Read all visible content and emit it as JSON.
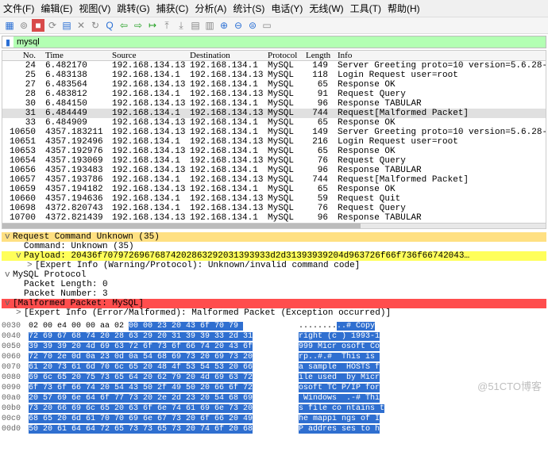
{
  "menu": [
    "文件(F)",
    "编辑(E)",
    "视图(V)",
    "跳转(G)",
    "捕获(C)",
    "分析(A)",
    "统计(S)",
    "电话(Y)",
    "无线(W)",
    "工具(T)",
    "帮助(H)"
  ],
  "filter": {
    "value": "mysql"
  },
  "columns": [
    "No.",
    "Time",
    "Source",
    "Destination",
    "Protocol",
    "Length",
    "Info"
  ],
  "packets": [
    {
      "no": "24",
      "time": "6.482170",
      "src": "192.168.134.132",
      "dst": "192.168.134.1",
      "proto": "MySQL",
      "len": "149",
      "info": "Server Greeting proto=10 version=5.6.28-0ubuntu0.14.04.1"
    },
    {
      "no": "25",
      "time": "6.483138",
      "src": "192.168.134.1",
      "dst": "192.168.134.132",
      "proto": "MySQL",
      "len": "118",
      "info": "Login Request user=root"
    },
    {
      "no": "27",
      "time": "6.483564",
      "src": "192.168.134.132",
      "dst": "192.168.134.1",
      "proto": "MySQL",
      "len": "65",
      "info": "Response OK"
    },
    {
      "no": "28",
      "time": "6.483812",
      "src": "192.168.134.1",
      "dst": "192.168.134.132",
      "proto": "MySQL",
      "len": "91",
      "info": "Request Query"
    },
    {
      "no": "30",
      "time": "6.484150",
      "src": "192.168.134.132",
      "dst": "192.168.134.1",
      "proto": "MySQL",
      "len": "96",
      "info": "Response TABULAR"
    },
    {
      "no": "31",
      "time": "6.484449",
      "src": "192.168.134.1",
      "dst": "192.168.134.132",
      "proto": "MySQL",
      "len": "744",
      "info": "Request[Malformed Packet]",
      "sel": true
    },
    {
      "no": "33",
      "time": "6.484909",
      "src": "192.168.134.132",
      "dst": "192.168.134.1",
      "proto": "MySQL",
      "len": "65",
      "info": "Response OK"
    },
    {
      "no": "10650",
      "time": "4357.183211",
      "src": "192.168.134.132",
      "dst": "192.168.134.1",
      "proto": "MySQL",
      "len": "149",
      "info": "Server Greeting proto=10 version=5.6.28-0ubuntu0.14.04.1"
    },
    {
      "no": "10651",
      "time": "4357.192496",
      "src": "192.168.134.1",
      "dst": "192.168.134.132",
      "proto": "MySQL",
      "len": "216",
      "info": "Login Request user=root"
    },
    {
      "no": "10653",
      "time": "4357.192976",
      "src": "192.168.134.132",
      "dst": "192.168.134.1",
      "proto": "MySQL",
      "len": "65",
      "info": "Response OK"
    },
    {
      "no": "10654",
      "time": "4357.193069",
      "src": "192.168.134.1",
      "dst": "192.168.134.132",
      "proto": "MySQL",
      "len": "76",
      "info": "Request Query"
    },
    {
      "no": "10656",
      "time": "4357.193483",
      "src": "192.168.134.132",
      "dst": "192.168.134.1",
      "proto": "MySQL",
      "len": "96",
      "info": "Response TABULAR"
    },
    {
      "no": "10657",
      "time": "4357.193786",
      "src": "192.168.134.1",
      "dst": "192.168.134.132",
      "proto": "MySQL",
      "len": "744",
      "info": "Request[Malformed Packet]"
    },
    {
      "no": "10659",
      "time": "4357.194182",
      "src": "192.168.134.132",
      "dst": "192.168.134.1",
      "proto": "MySQL",
      "len": "65",
      "info": "Response OK"
    },
    {
      "no": "10660",
      "time": "4357.194636",
      "src": "192.168.134.1",
      "dst": "192.168.134.132",
      "proto": "MySQL",
      "len": "59",
      "info": "Request Quit"
    },
    {
      "no": "10698",
      "time": "4372.820743",
      "src": "192.168.134.1",
      "dst": "192.168.134.132",
      "proto": "MySQL",
      "len": "76",
      "info": "Request Query"
    },
    {
      "no": "10700",
      "time": "4372.821439",
      "src": "192.168.134.132",
      "dst": "192.168.134.1",
      "proto": "MySQL",
      "len": "96",
      "info": "Response TABULAR"
    }
  ],
  "tree": [
    {
      "lvl": 1,
      "tgl": "v",
      "cls": "hl-orange",
      "text": "Request Command Unknown (35)"
    },
    {
      "lvl": 2,
      "tgl": "",
      "cls": "",
      "text": "Command: Unknown (35)"
    },
    {
      "lvl": 2,
      "tgl": "v",
      "cls": "hl-yellow",
      "text": "Payload: 20436f70797269676874202863292031393933d2d31393939204d963726f66f736f66742043…"
    },
    {
      "lvl": 3,
      "tgl": ">",
      "cls": "",
      "text": "[Expert Info (Warning/Protocol): Unknown/invalid command code]"
    },
    {
      "lvl": 1,
      "tgl": "v",
      "cls": "",
      "text": "MySQL Protocol"
    },
    {
      "lvl": 2,
      "tgl": "",
      "cls": "",
      "text": "Packet Length: 0"
    },
    {
      "lvl": 2,
      "tgl": "",
      "cls": "",
      "text": "Packet Number: 3"
    },
    {
      "lvl": 1,
      "tgl": "v",
      "cls": "hl-red",
      "text": "[Malformed Packet: MySQL]"
    },
    {
      "lvl": 2,
      "tgl": ">",
      "cls": "",
      "text": "[Expert Info (Error/Malformed): Malformed Packet (Exception occurred)]"
    }
  ],
  "hex": [
    {
      "off": "0030",
      "b0": "02 00 e4 00 00 aa 02 ",
      "b1": "00 00 23 ",
      "a0": "........",
      "a1": "..# Copy",
      "selB": "20 43 6f 70 79 ",
      "selA": ""
    },
    {
      "off": "0040",
      "b0": "",
      "b1": "72 69 67 68 74 20 28 63 29 20 31 39 39 33 2d 31",
      "a0": "",
      "a1": "right (c ) 1993-1"
    },
    {
      "off": "0050",
      "b0": "",
      "b1": "39 39 39 20 4d 69 63 72 6f 73 6f 66 74 20 43 6f",
      "a0": "",
      "a1": "999 Micr osoft Co"
    },
    {
      "off": "0060",
      "b0": "",
      "b1": "72 70 2e 0d 0a 23 0d 0a 54 68 69 73 20 69 73 20",
      "a0": "",
      "a1": "rp..#.#  This is "
    },
    {
      "off": "0070",
      "b0": "",
      "b1": "61 20 73 61 6d 70 6c 65 20 48 4f 53 54 53 20 66",
      "a0": "",
      "a1": "a sample  HOSTS f"
    },
    {
      "off": "0080",
      "b0": "",
      "b1": "69 6c 65 20 75 73 65 64 20 62 79 20 4d 69 63 72",
      "a0": "",
      "a1": "ile used  by Micr"
    },
    {
      "off": "0090",
      "b0": "",
      "b1": "6f 73 6f 66 74 20 54 43 50 2f 49 50 20 66 6f 72",
      "a0": "",
      "a1": "osoft TC P/IP for"
    },
    {
      "off": "00a0",
      "b0": "",
      "b1": "20 57 69 6e 64 6f 77 73 20 2e 2d 23 20 54 68 69",
      "a0": "",
      "a1": " Windows  .-# Thi"
    },
    {
      "off": "00b0",
      "b0": "",
      "b1": "73 20 66 69 6c 65 20 63 6f 6e 74 61 69 6e 73 20",
      "a0": "",
      "a1": "s file co ntains t"
    },
    {
      "off": "00c0",
      "b0": "",
      "b1": "68 65 20 6d 61 70 70 69 6e 67 73 20 6f 66 20 49",
      "a0": "",
      "a1": "he mappi ngs of I"
    },
    {
      "off": "00d0",
      "b0": "",
      "b1": "50 20 61 64 64 72 65 73 73 65 73 20 74 6f 20 68",
      "a0": "",
      "a1": "P addres ses to h"
    }
  ],
  "watermark": "@51CTO博客"
}
